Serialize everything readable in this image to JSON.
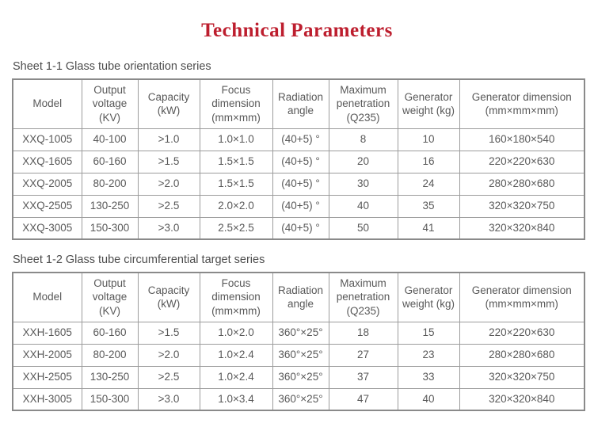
{
  "page": {
    "title": "Technical Parameters"
  },
  "colors": {
    "title_red": "#bd1e2e",
    "table_text_gray": "#595959",
    "table_border_gray": "#9c9c9c"
  },
  "tables": [
    {
      "caption": "Sheet 1-1 Glass tube orientation series",
      "columns": [
        "Model",
        "Output voltage (KV)",
        "Capacity (kW)",
        "Focus dimension (mm×mm)",
        "Radiation angle",
        "Maximum penetration (Q235)",
        "Generator weight (kg)",
        "Generator dimension (mm×mm×mm)"
      ],
      "rows": [
        [
          "XXQ-1005",
          "40-100",
          ">1.0",
          "1.0×1.0",
          "(40+5) °",
          "8",
          "10",
          "160×180×540"
        ],
        [
          "XXQ-1605",
          "60-160",
          ">1.5",
          "1.5×1.5",
          "(40+5) °",
          "20",
          "16",
          "220×220×630"
        ],
        [
          "XXQ-2005",
          "80-200",
          ">2.0",
          "1.5×1.5",
          "(40+5) °",
          "30",
          "24",
          "280×280×680"
        ],
        [
          "XXQ-2505",
          "130-250",
          ">2.5",
          "2.0×2.0",
          "(40+5) °",
          "40",
          "35",
          "320×320×750"
        ],
        [
          "XXQ-3005",
          "150-300",
          ">3.0",
          "2.5×2.5",
          "(40+5) °",
          "50",
          "41",
          "320×320×840"
        ]
      ]
    },
    {
      "caption": "Sheet 1-2 Glass tube circumferential target series",
      "columns": [
        "Model",
        "Output voltage (KV)",
        "Capacity (kW)",
        "Focus dimension (mm×mm)",
        "Radiation angle",
        "Maximum penetration (Q235)",
        "Generator weight (kg)",
        "Generator dimension (mm×mm×mm)"
      ],
      "rows": [
        [
          "XXH-1605",
          "60-160",
          ">1.5",
          "1.0×2.0",
          "360°×25°",
          "18",
          "15",
          "220×220×630"
        ],
        [
          "XXH-2005",
          "80-200",
          ">2.0",
          "1.0×2.4",
          "360°×25°",
          "27",
          "23",
          "280×280×680"
        ],
        [
          "XXH-2505",
          "130-250",
          ">2.5",
          "1.0×2.4",
          "360°×25°",
          "37",
          "33",
          "320×320×750"
        ],
        [
          "XXH-3005",
          "150-300",
          ">3.0",
          "1.0×3.4",
          "360°×25°",
          "47",
          "40",
          "320×320×840"
        ]
      ]
    }
  ]
}
